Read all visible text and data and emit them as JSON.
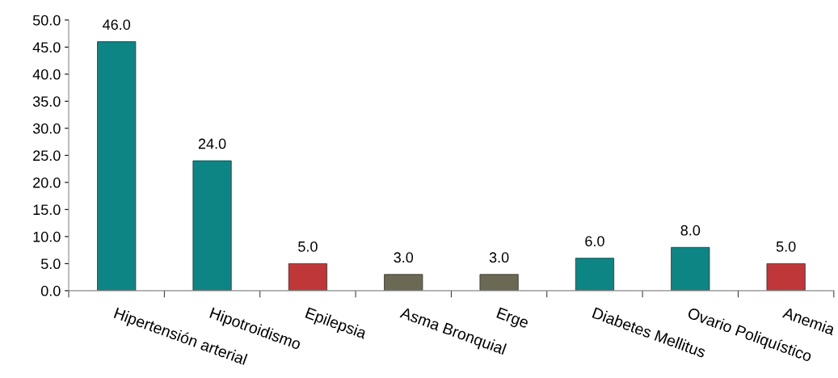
{
  "chart_data": {
    "type": "bar",
    "categories": [
      "Hipertensión arterial",
      "Hipotroidismo",
      "Epilepsia",
      "Asma Bronquial",
      "Erge",
      "Diabetes Mellitus",
      "Ovario Poliquístico",
      "Anemia"
    ],
    "values": [
      46.0,
      24.0,
      5.0,
      3.0,
      3.0,
      6.0,
      8.0,
      5.0
    ],
    "value_labels": [
      "46.0",
      "24.0",
      "5.0",
      "3.0",
      "3.0",
      "6.0",
      "8.0",
      "5.0"
    ],
    "colors": [
      "#0e8585",
      "#0e8585",
      "#c0373a",
      "#6b6954",
      "#6b6954",
      "#0e8585",
      "#0e8585",
      "#c0373a"
    ],
    "ylim": [
      0,
      50
    ],
    "yticks": [
      {
        "value": 0,
        "label": "0.0"
      },
      {
        "value": 5,
        "label": "5.0"
      },
      {
        "value": 10,
        "label": "10.0"
      },
      {
        "value": 15,
        "label": "15.0"
      },
      {
        "value": 20,
        "label": "20.0"
      },
      {
        "value": 25,
        "label": "25.0"
      },
      {
        "value": 30,
        "label": "30.0"
      },
      {
        "value": 35,
        "label": "35.0"
      },
      {
        "value": 40,
        "label": "40.0"
      },
      {
        "value": 45,
        "label": "45.0"
      },
      {
        "value": 50,
        "label": "50.0"
      }
    ],
    "grid": false,
    "legend": false
  }
}
